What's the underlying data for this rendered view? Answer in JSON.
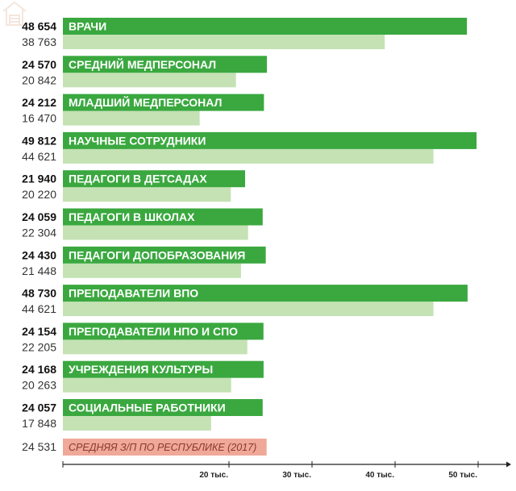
{
  "chart_data": {
    "type": "bar",
    "orientation": "horizontal",
    "xlim": [
      0,
      50000
    ],
    "ticks": [
      {
        "value": 20000,
        "label": "20 тыс."
      },
      {
        "value": 30000,
        "label": "30 тыс."
      },
      {
        "value": 40000,
        "label": "40 тыс."
      },
      {
        "value": 50000,
        "label": "50 тыс."
      }
    ],
    "categories": [
      "ВРАЧИ",
      "СРЕДНИЙ МЕДПЕРСОНАЛ",
      "МЛАДШИЙ МЕДПЕРСОНАЛ",
      "НАУЧНЫЕ СОТРУДНИКИ",
      "ПЕДАГОГИ В ДЕТСАДАХ",
      "ПЕДАГОГИ В ШКОЛАХ",
      "ПЕДАГОГИ ДОПОБРАЗОВАНИЯ",
      "ПРЕПОДАВАТЕЛИ ВПО",
      "ПРЕПОДАВАТЕЛИ НПО И СПО",
      "УЧРЕЖДЕНИЯ КУЛЬТУРЫ",
      "СОЦИАЛЬНЫЕ РАБОТНИКИ"
    ],
    "series": [
      {
        "color": "#3aa83f",
        "values": [
          48654,
          24570,
          24212,
          49812,
          21940,
          24059,
          24430,
          48730,
          24154,
          24168,
          24057
        ],
        "labels": [
          "48 654",
          "24 570",
          "24 212",
          "49 812",
          "21 940",
          "24 059",
          "24 430",
          "48 730",
          "24 154",
          "24 168",
          "24 057"
        ]
      },
      {
        "color": "#c4e2b4",
        "values": [
          38763,
          20842,
          16470,
          44621,
          20220,
          22304,
          21448,
          44621,
          22205,
          20263,
          17848
        ],
        "labels": [
          "38 763",
          "20 842",
          "16 470",
          "44 621",
          "20 220",
          "22 304",
          "21 448",
          "44 621",
          "22 205",
          "20 263",
          "17 848"
        ]
      }
    ],
    "reference": {
      "label": "СРЕДНЯЯ З/П ПО РЕСПУБЛИКЕ (2017)",
      "value": 24531,
      "value_label": "24 531",
      "color": "#f0a898"
    }
  }
}
